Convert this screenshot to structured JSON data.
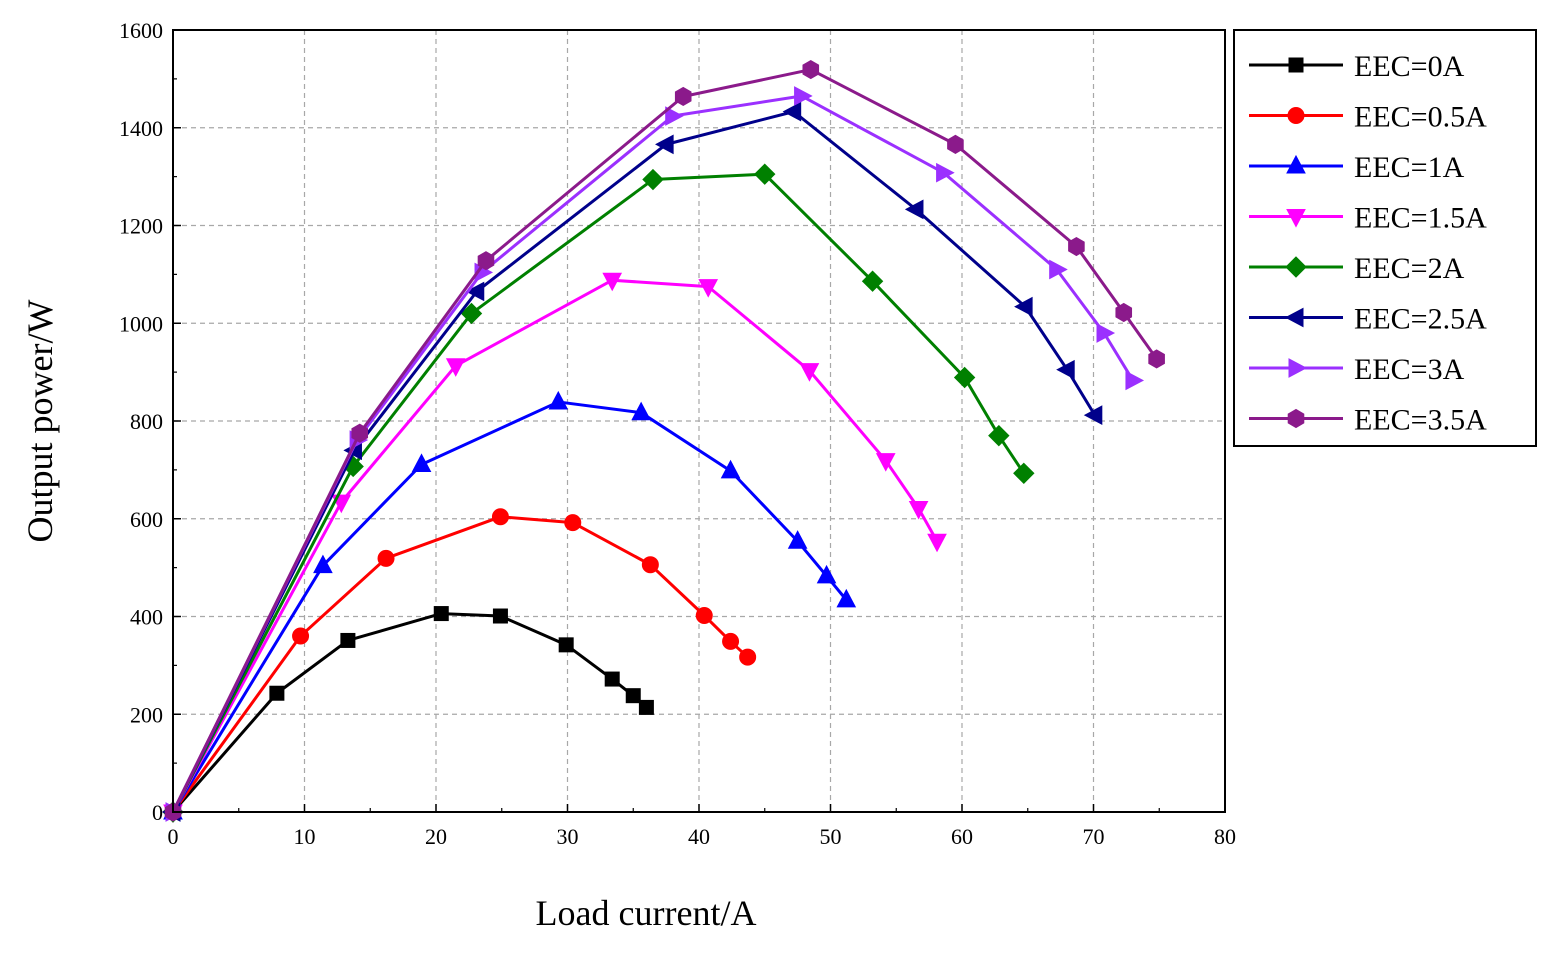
{
  "chart_data": {
    "type": "line",
    "title": "",
    "xlabel": "Load current/A",
    "ylabel": "Output power/W",
    "xlim": [
      0,
      80
    ],
    "ylim": [
      0,
      1600
    ],
    "xticks": [
      0,
      10,
      20,
      30,
      40,
      50,
      60,
      70,
      80
    ],
    "yticks": [
      0,
      200,
      400,
      600,
      800,
      1000,
      1200,
      1400,
      1600
    ],
    "xtick_labels": [
      "0",
      "10",
      "20",
      "30",
      "40",
      "50",
      "60",
      "70",
      "80"
    ],
    "ytick_labels": [
      "0",
      "200",
      "400",
      "600",
      "800",
      "1000",
      "1200",
      "1400",
      "1600"
    ],
    "grid": true,
    "legend_position": "right",
    "series": [
      {
        "name": "EEC=0A",
        "color": "#000000",
        "marker": "square",
        "x": [
          0,
          7.9,
          13.3,
          20.4,
          24.9,
          29.9,
          33.4,
          35.0,
          36.0
        ],
        "y": [
          0,
          243,
          351,
          406,
          401,
          342,
          272,
          238,
          214
        ]
      },
      {
        "name": "EEC=0.5A",
        "color": "#ff0000",
        "marker": "circle",
        "x": [
          0,
          9.7,
          16.2,
          24.9,
          30.4,
          36.3,
          40.4,
          42.4,
          43.7
        ],
        "y": [
          0,
          360,
          519,
          604,
          592,
          506,
          402,
          349,
          317
        ]
      },
      {
        "name": "EEC=1A",
        "color": "#0000ff",
        "marker": "triangle-up",
        "x": [
          0,
          11.4,
          18.9,
          29.3,
          35.6,
          42.4,
          47.5,
          49.7,
          51.2
        ],
        "y": [
          0,
          504,
          711,
          839,
          817,
          698,
          554,
          483,
          434
        ]
      },
      {
        "name": "EEC=1.5A",
        "color": "#ff00ff",
        "marker": "triangle-down",
        "x": [
          0,
          12.8,
          21.5,
          33.4,
          40.7,
          48.4,
          54.2,
          56.7,
          58.1
        ],
        "y": [
          0,
          634,
          913,
          1088,
          1075,
          903,
          719,
          621,
          554
        ]
      },
      {
        "name": "EEC=2A",
        "color": "#008000",
        "marker": "diamond",
        "x": [
          0,
          13.7,
          22.7,
          36.5,
          45.0,
          53.2,
          60.2,
          62.8,
          64.7
        ],
        "y": [
          0,
          707,
          1020,
          1294,
          1305,
          1086,
          889,
          770,
          693
        ]
      },
      {
        "name": "EEC=2.5A",
        "color": "#00008b",
        "marker": "triangle-left",
        "x": [
          0,
          13.8,
          23.1,
          37.5,
          47.2,
          56.5,
          64.8,
          68.0,
          70.1
        ],
        "y": [
          0,
          740,
          1065,
          1366,
          1433,
          1233,
          1034,
          905,
          812
        ]
      },
      {
        "name": "EEC=3A",
        "color": "#9b30ff",
        "marker": "triangle-right",
        "x": [
          0,
          14.0,
          23.5,
          38.0,
          47.8,
          58.6,
          67.2,
          70.8,
          73.0
        ],
        "y": [
          0,
          761,
          1104,
          1424,
          1465,
          1308,
          1110,
          980,
          883
        ]
      },
      {
        "name": "EEC=3.5A",
        "color": "#8b1a8b",
        "marker": "hexagon",
        "x": [
          0,
          14.2,
          23.8,
          38.8,
          48.5,
          59.5,
          68.7,
          72.3,
          74.8
        ],
        "y": [
          0,
          775,
          1128,
          1464,
          1519,
          1366,
          1157,
          1022,
          927
        ]
      }
    ]
  }
}
